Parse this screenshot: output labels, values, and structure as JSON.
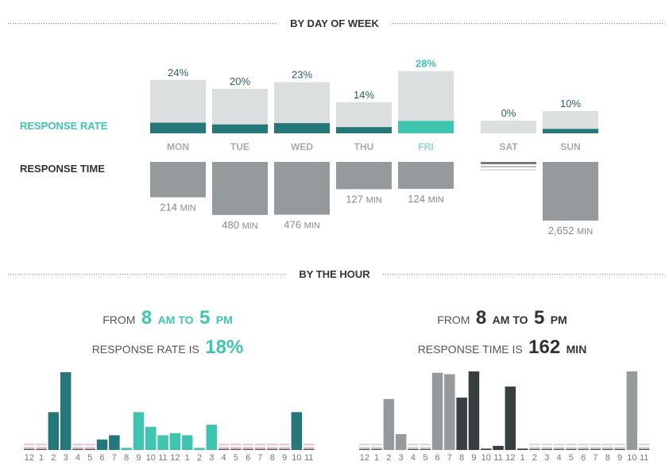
{
  "sections": {
    "day_title": "BY DAY OF WEEK",
    "hour_title": "BY THE HOUR"
  },
  "row_labels": {
    "rate": "RESPONSE RATE",
    "time": "RESPONSE TIME"
  },
  "colors": {
    "accent": "#3fc4b0",
    "dark_teal": "#26777a",
    "light_gray": "#dcdfe0",
    "time_gray": "#959b9c",
    "dark_gray": "#373f40",
    "pink": "#f2c4d3"
  },
  "units": {
    "min": "MIN"
  },
  "highlights": {
    "rate": {
      "from": "FROM",
      "start": "8",
      "start_unit": "AM TO",
      "end": "5",
      "end_unit": "PM",
      "lead": "RESPONSE RATE IS",
      "value": "18%"
    },
    "time": {
      "from": "FROM",
      "start": "8",
      "start_unit": "AM TO",
      "end": "5",
      "end_unit": "PM",
      "lead": "RESPONSE TIME IS",
      "value": "162",
      "unit": "MIN"
    }
  },
  "chart_data": [
    {
      "type": "bar",
      "name": "day-response-rate",
      "categories": [
        "MON",
        "TUE",
        "WED",
        "THU",
        "FRI",
        "SAT",
        "SUN"
      ],
      "values": [
        24,
        20,
        23,
        14,
        28,
        0,
        10
      ],
      "labels": [
        "24%",
        "20%",
        "23%",
        "14%",
        "28%",
        "0%",
        "10%"
      ],
      "highlight": "FRI"
    },
    {
      "type": "bar",
      "name": "day-response-time",
      "categories": [
        "MON",
        "TUE",
        "WED",
        "THU",
        "FRI",
        "SAT",
        "SUN"
      ],
      "values": [
        214,
        480,
        476,
        127,
        124,
        null,
        2652
      ],
      "labels": [
        "214",
        "480",
        "476",
        "127",
        "124",
        "",
        "2,652"
      ]
    },
    {
      "type": "bar",
      "name": "hourly-response-rate",
      "categories": [
        "12",
        "1",
        "2",
        "3",
        "4",
        "5",
        "6",
        "7",
        "8",
        "9",
        "10",
        "11",
        "12",
        "1",
        "2",
        "3",
        "4",
        "5",
        "6",
        "7",
        "8",
        "9",
        "10",
        "11"
      ],
      "values": [
        0,
        0,
        18,
        37,
        0,
        0,
        5,
        7,
        1,
        18,
        11,
        7,
        8,
        7,
        1,
        12,
        0,
        0,
        0,
        0,
        0,
        0,
        18,
        0
      ],
      "highlight_range": [
        8,
        16
      ]
    },
    {
      "type": "bar",
      "name": "hourly-response-time",
      "categories": [
        "12",
        "1",
        "2",
        "3",
        "4",
        "5",
        "6",
        "7",
        "8",
        "9",
        "10",
        "11",
        "12",
        "1",
        "2",
        "3",
        "4",
        "5",
        "6",
        "7",
        "8",
        "9",
        "10",
        "11"
      ],
      "values": [
        0,
        0,
        370,
        115,
        0,
        0,
        560,
        550,
        380,
        570,
        10,
        30,
        460,
        10,
        0,
        0,
        0,
        0,
        0,
        0,
        0,
        0,
        570,
        0
      ],
      "highlight_range": [
        8,
        16
      ]
    }
  ]
}
